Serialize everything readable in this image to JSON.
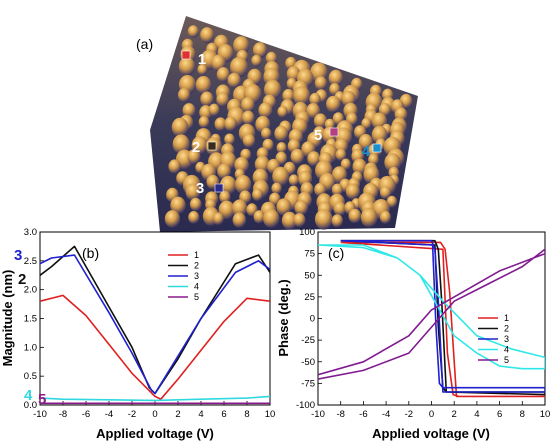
{
  "panels": {
    "a": {
      "label": "(a)",
      "markers": [
        {
          "label": "1",
          "color": "#e03030"
        },
        {
          "label": "2",
          "color": "#3a2a1a"
        },
        {
          "label": "3",
          "color": "#2a2a8a"
        },
        {
          "label": "4",
          "color": "#1a90d0"
        },
        {
          "label": "5",
          "color": "#b04080"
        }
      ]
    },
    "b": {
      "label": "(b)"
    },
    "c": {
      "label": "(c)"
    }
  },
  "chart_data": [
    {
      "type": "line",
      "panel": "(b)",
      "xlabel": "Applied voltage (V)",
      "ylabel": "Magnitude (nm)",
      "xlim": [
        -10,
        10
      ],
      "ylim": [
        0,
        3.0
      ],
      "xticks": [
        "-10",
        "-8",
        "-6",
        "-4",
        "-2",
        "0",
        "2",
        "4",
        "6",
        "8",
        "10"
      ],
      "yticks": [
        "0.0",
        "0.5",
        "1.0",
        "1.5",
        "2.0",
        "2.5",
        "3.0"
      ],
      "legend_position": "top-right",
      "curve_labels": [
        "3",
        "2",
        "4",
        "5"
      ],
      "series": [
        {
          "name": "1",
          "color": "#e02020",
          "x": [
            -10,
            -8,
            -6,
            -4,
            -2,
            0,
            0.5,
            2,
            4,
            6,
            8,
            10
          ],
          "y": [
            1.8,
            1.9,
            1.55,
            1.05,
            0.55,
            0.15,
            0.1,
            0.45,
            0.95,
            1.45,
            1.85,
            1.8
          ]
        },
        {
          "name": "2",
          "color": "#101010",
          "x": [
            -10,
            -9,
            -7,
            -4,
            -2,
            -0.5,
            0,
            2,
            4,
            7,
            9,
            10
          ],
          "y": [
            2.25,
            2.4,
            2.75,
            1.7,
            1.0,
            0.3,
            0.2,
            0.8,
            1.5,
            2.45,
            2.6,
            2.3
          ]
        },
        {
          "name": "3",
          "color": "#2020d0",
          "x": [
            -10,
            -9,
            -7,
            -4,
            -2,
            -0.3,
            0,
            2,
            4,
            7,
            9,
            10
          ],
          "y": [
            2.45,
            2.55,
            2.6,
            1.6,
            0.9,
            0.25,
            0.2,
            0.85,
            1.5,
            2.3,
            2.5,
            2.35
          ]
        },
        {
          "name": "4",
          "color": "#30d8e0",
          "x": [
            -10,
            -8,
            -4,
            0,
            4,
            8,
            10
          ],
          "y": [
            0.12,
            0.1,
            0.09,
            0.08,
            0.1,
            0.12,
            0.15
          ]
        },
        {
          "name": "5",
          "color": "#8a1a8a",
          "x": [
            -10,
            -5,
            0,
            5,
            10
          ],
          "y": [
            0.03,
            0.03,
            0.03,
            0.03,
            0.03
          ]
        }
      ]
    },
    {
      "type": "line",
      "panel": "(c)",
      "xlabel": "Applied voltage (V)",
      "ylabel": "Phase (deg.)",
      "xlim": [
        -10,
        10
      ],
      "ylim": [
        -100,
        100
      ],
      "xticks": [
        "-10",
        "-8",
        "-6",
        "-4",
        "-2",
        "0",
        "2",
        "4",
        "6",
        "8",
        "10"
      ],
      "yticks": [
        "-100",
        "-75",
        "-50",
        "-25",
        "0",
        "25",
        "50",
        "75",
        "100"
      ],
      "legend_position": "bottom-right",
      "series": [
        {
          "name": "1",
          "color": "#e02020",
          "x": [
            -8,
            0.8,
            1.2,
            1.6,
            2.2,
            10,
            10,
            2.4,
            1.9,
            1.4,
            1.0,
            -8
          ],
          "y": [
            88,
            88,
            80,
            30,
            -90,
            -90,
            -90,
            -90,
            -88,
            -40,
            80,
            88
          ]
        },
        {
          "name": "2",
          "color": "#101010",
          "x": [
            -8,
            0.3,
            0.6,
            0.9,
            1.3,
            10,
            10,
            1.3,
            1.0,
            0.6,
            0.3,
            -8
          ],
          "y": [
            90,
            90,
            80,
            20,
            -85,
            -88,
            -85,
            -85,
            -80,
            -10,
            85,
            90
          ]
        },
        {
          "name": "3",
          "color": "#2020d0",
          "x": [
            -8,
            0.0,
            0.3,
            0.6,
            1.0,
            10,
            10,
            1.0,
            0.7,
            0.4,
            0.1,
            -8
          ],
          "y": [
            90,
            90,
            80,
            20,
            -85,
            -85,
            -80,
            -80,
            -75,
            -10,
            85,
            90
          ]
        },
        {
          "name": "4",
          "color": "#30e8e8",
          "x": [
            -10,
            -6,
            -3,
            -1,
            2,
            4,
            6,
            8,
            10,
            10,
            7,
            4,
            1,
            -1,
            -3,
            -6,
            -10
          ],
          "y": [
            85,
            85,
            70,
            50,
            -20,
            -40,
            -55,
            -58,
            -58,
            -45,
            -35,
            -20,
            20,
            50,
            70,
            82,
            85
          ]
        },
        {
          "name": "5",
          "color": "#801a90",
          "x": [
            -10,
            -6,
            -2,
            0,
            2,
            5,
            8,
            10,
            10,
            6,
            2,
            0,
            -2,
            -6,
            -10
          ],
          "y": [
            -70,
            -60,
            -40,
            -10,
            20,
            40,
            60,
            80,
            75,
            55,
            25,
            10,
            -20,
            -50,
            -65
          ]
        }
      ]
    }
  ]
}
